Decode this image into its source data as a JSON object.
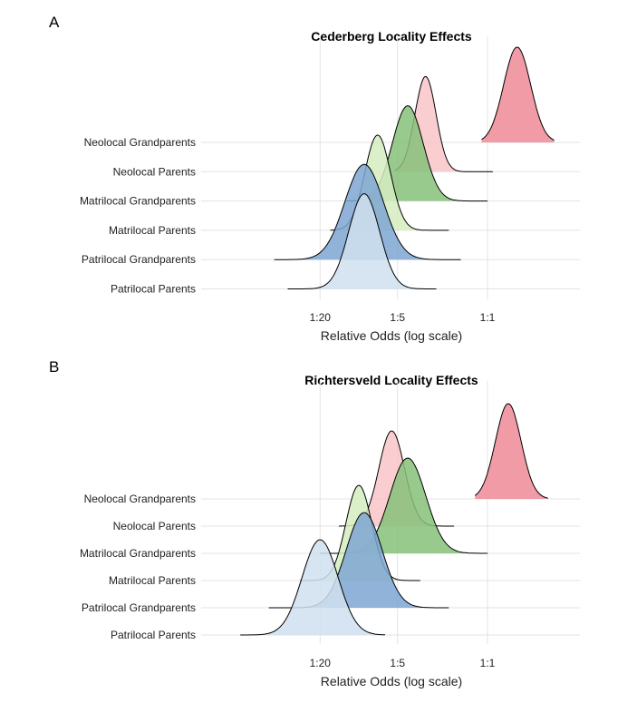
{
  "chart_data": [
    {
      "type": "ridgeline-density",
      "panel_label": "A",
      "title": "Cederberg Locality Effects",
      "xlabel": "Relative Odds (log scale)",
      "xscale": "log",
      "xticks": [
        0.05,
        0.2,
        1
      ],
      "xtick_labels": [
        "1:20",
        "1:5",
        "1:1"
      ],
      "xlim": [
        0.015,
        4.4
      ],
      "grid": true,
      "rows": [
        {
          "label": "Neolocal Grandparents",
          "color": "#ef8a96",
          "mode": 1.7,
          "sd_log10": 0.105,
          "range": [
            0.9,
            3.3
          ]
        },
        {
          "label": "Neolocal Parents",
          "color": "#f9c6c9",
          "mode": 0.33,
          "sd_log10": 0.082,
          "range": [
            0.19,
            1.1
          ]
        },
        {
          "label": "Matrilocal Grandparents",
          "color": "#86c17a",
          "mode": 0.24,
          "sd_log10": 0.12,
          "range": [
            0.08,
            1.0
          ]
        },
        {
          "label": "Matrilocal Parents",
          "color": "#d5edc0",
          "mode": 0.14,
          "sd_log10": 0.1,
          "range": [
            0.06,
            0.5
          ]
        },
        {
          "label": "Patrilocal Grandparents",
          "color": "#7ea6d2",
          "mode": 0.11,
          "sd_log10": 0.15,
          "range": [
            0.022,
            0.62
          ]
        },
        {
          "label": "Patrilocal Parents",
          "color": "#cfe1ee",
          "mode": 0.11,
          "sd_log10": 0.12,
          "range": [
            0.028,
            0.4
          ]
        }
      ]
    },
    {
      "type": "ridgeline-density",
      "panel_label": "B",
      "title": "Richtersveld Locality Effects",
      "xlabel": "Relative Odds (log scale)",
      "xscale": "log",
      "xticks": [
        0.05,
        0.2,
        1
      ],
      "xtick_labels": [
        "1:20",
        "1:5",
        "1:1"
      ],
      "xlim": [
        0.015,
        4.4
      ],
      "grid": true,
      "rows": [
        {
          "label": "Neolocal Grandparents",
          "color": "#ef8a96",
          "mode": 1.45,
          "sd_log10": 0.1,
          "range": [
            0.8,
            2.95
          ]
        },
        {
          "label": "Neolocal Parents",
          "color": "#f9c6c9",
          "mode": 0.18,
          "sd_log10": 0.1,
          "range": [
            0.07,
            0.55
          ]
        },
        {
          "label": "Matrilocal Grandparents",
          "color": "#86c17a",
          "mode": 0.24,
          "sd_log10": 0.14,
          "range": [
            0.05,
            1.0
          ]
        },
        {
          "label": "Matrilocal Parents",
          "color": "#d5edc0",
          "mode": 0.1,
          "sd_log10": 0.1,
          "range": [
            0.035,
            0.3
          ]
        },
        {
          "label": "Patrilocal Grandparents",
          "color": "#7ea6d2",
          "mode": 0.11,
          "sd_log10": 0.14,
          "range": [
            0.02,
            0.5
          ]
        },
        {
          "label": "Patrilocal Parents",
          "color": "#cfe1ee",
          "mode": 0.05,
          "sd_log10": 0.14,
          "range": [
            0.012,
            0.16
          ]
        }
      ]
    }
  ]
}
